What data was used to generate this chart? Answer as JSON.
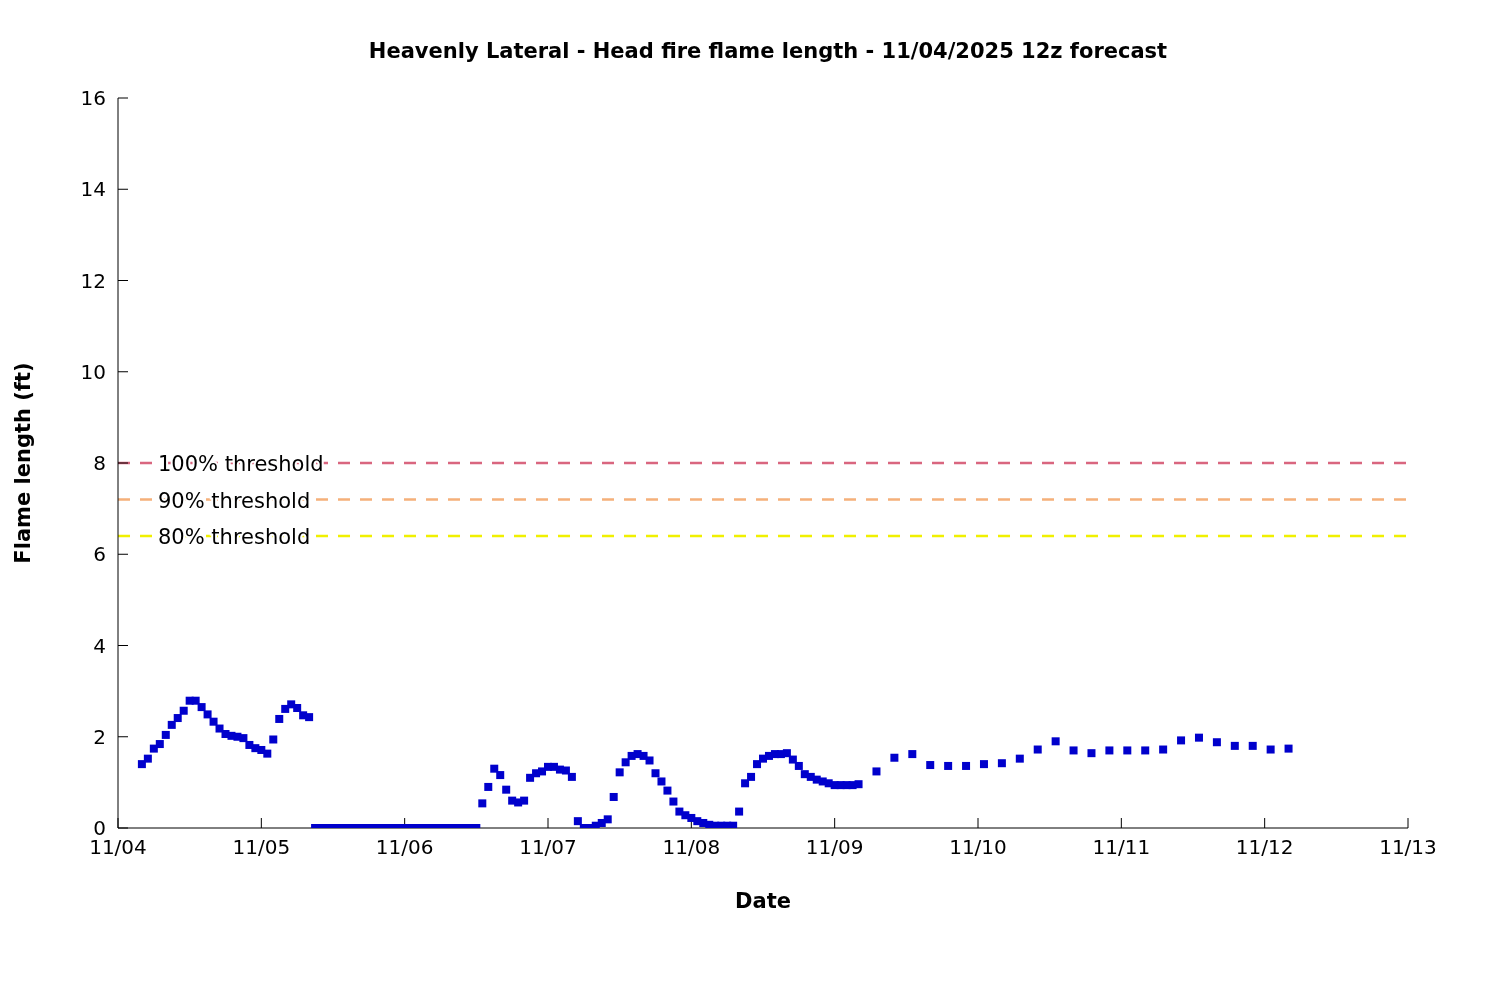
{
  "chart_data": {
    "type": "scatter",
    "title": "Heavenly Lateral - Head fire flame length - 11/04/2025 12z forecast",
    "xlabel": "Date",
    "ylabel": "Flame length (ft)",
    "xlim": [
      "2025-11-04",
      "2025-11-13"
    ],
    "xticks": [
      {
        "value": "2025-11-04",
        "label": "11/04"
      },
      {
        "value": "2025-11-05",
        "label": "11/05"
      },
      {
        "value": "2025-11-06",
        "label": "11/06"
      },
      {
        "value": "2025-11-07",
        "label": "11/07"
      },
      {
        "value": "2025-11-08",
        "label": "11/08"
      },
      {
        "value": "2025-11-09",
        "label": "11/09"
      },
      {
        "value": "2025-11-10",
        "label": "11/10"
      },
      {
        "value": "2025-11-11",
        "label": "11/11"
      },
      {
        "value": "2025-11-12",
        "label": "11/12"
      },
      {
        "value": "2025-11-13",
        "label": "11/13"
      }
    ],
    "ylim": [
      0,
      16
    ],
    "yticks": [
      0,
      2,
      4,
      6,
      8,
      10,
      12,
      14,
      16
    ],
    "grid": false,
    "legend": false,
    "marker": "square",
    "series": [
      {
        "color": "#0000cc",
        "x": [
          "2025-11-04T04:00",
          "2025-11-04T05:00",
          "2025-11-04T06:00",
          "2025-11-04T07:00",
          "2025-11-04T08:00",
          "2025-11-04T09:00",
          "2025-11-04T10:00",
          "2025-11-04T11:00",
          "2025-11-04T12:00",
          "2025-11-04T13:00",
          "2025-11-04T14:00",
          "2025-11-04T15:00",
          "2025-11-04T16:00",
          "2025-11-04T17:00",
          "2025-11-04T18:00",
          "2025-11-04T19:00",
          "2025-11-04T20:00",
          "2025-11-04T21:00",
          "2025-11-04T22:00",
          "2025-11-04T23:00",
          "2025-11-05T00:00",
          "2025-11-05T01:00",
          "2025-11-05T02:00",
          "2025-11-05T03:00",
          "2025-11-05T04:00",
          "2025-11-05T05:00",
          "2025-11-05T06:00",
          "2025-11-05T07:00",
          "2025-11-05T08:00",
          "2025-11-05T09:00",
          "2025-11-05T10:00",
          "2025-11-05T11:00",
          "2025-11-05T12:00",
          "2025-11-05T13:00",
          "2025-11-05T14:00",
          "2025-11-05T15:00",
          "2025-11-05T16:00",
          "2025-11-05T17:00",
          "2025-11-05T18:00",
          "2025-11-05T19:00",
          "2025-11-05T20:00",
          "2025-11-05T21:00",
          "2025-11-05T22:00",
          "2025-11-05T23:00",
          "2025-11-06T00:00",
          "2025-11-06T01:00",
          "2025-11-06T02:00",
          "2025-11-06T03:00",
          "2025-11-06T04:00",
          "2025-11-06T05:00",
          "2025-11-06T06:00",
          "2025-11-06T07:00",
          "2025-11-06T08:00",
          "2025-11-06T09:00",
          "2025-11-06T10:00",
          "2025-11-06T11:00",
          "2025-11-06T12:00",
          "2025-11-06T13:00",
          "2025-11-06T14:00",
          "2025-11-06T15:00",
          "2025-11-06T16:00",
          "2025-11-06T17:00",
          "2025-11-06T18:00",
          "2025-11-06T19:00",
          "2025-11-06T20:00",
          "2025-11-06T21:00",
          "2025-11-06T22:00",
          "2025-11-06T23:00",
          "2025-11-07T00:00",
          "2025-11-07T01:00",
          "2025-11-07T02:00",
          "2025-11-07T03:00",
          "2025-11-07T04:00",
          "2025-11-07T05:00",
          "2025-11-07T06:00",
          "2025-11-07T07:00",
          "2025-11-07T08:00",
          "2025-11-07T09:00",
          "2025-11-07T10:00",
          "2025-11-07T11:00",
          "2025-11-07T12:00",
          "2025-11-07T13:00",
          "2025-11-07T14:00",
          "2025-11-07T15:00",
          "2025-11-07T16:00",
          "2025-11-07T17:00",
          "2025-11-07T18:00",
          "2025-11-07T19:00",
          "2025-11-07T20:00",
          "2025-11-07T21:00",
          "2025-11-07T22:00",
          "2025-11-07T23:00",
          "2025-11-08T00:00",
          "2025-11-08T01:00",
          "2025-11-08T02:00",
          "2025-11-08T03:00",
          "2025-11-08T04:00",
          "2025-11-08T05:00",
          "2025-11-08T06:00",
          "2025-11-08T07:00",
          "2025-11-08T08:00",
          "2025-11-08T09:00",
          "2025-11-08T10:00",
          "2025-11-08T11:00",
          "2025-11-08T12:00",
          "2025-11-08T13:00",
          "2025-11-08T14:00",
          "2025-11-08T15:00",
          "2025-11-08T16:00",
          "2025-11-08T17:00",
          "2025-11-08T18:00",
          "2025-11-08T19:00",
          "2025-11-08T20:00",
          "2025-11-08T21:00",
          "2025-11-08T22:00",
          "2025-11-08T23:00",
          "2025-11-09T00:00",
          "2025-11-09T01:00",
          "2025-11-09T02:00",
          "2025-11-09T03:00",
          "2025-11-09T04:00",
          "2025-11-09T07:00",
          "2025-11-09T10:00",
          "2025-11-09T13:00",
          "2025-11-09T16:00",
          "2025-11-09T19:00",
          "2025-11-09T22:00",
          "2025-11-10T01:00",
          "2025-11-10T04:00",
          "2025-11-10T07:00",
          "2025-11-10T10:00",
          "2025-11-10T13:00",
          "2025-11-10T16:00",
          "2025-11-10T19:00",
          "2025-11-10T22:00",
          "2025-11-11T01:00",
          "2025-11-11T04:00",
          "2025-11-11T07:00",
          "2025-11-11T10:00",
          "2025-11-11T13:00",
          "2025-11-11T16:00",
          "2025-11-11T19:00",
          "2025-11-11T22:00",
          "2025-11-12T01:00",
          "2025-11-12T04:00"
        ],
        "values": [
          1.4,
          1.52,
          1.74,
          1.84,
          2.04,
          2.26,
          2.41,
          2.57,
          2.79,
          2.79,
          2.65,
          2.49,
          2.33,
          2.18,
          2.06,
          2.02,
          2.0,
          1.97,
          1.82,
          1.75,
          1.71,
          1.63,
          1.94,
          2.39,
          2.61,
          2.71,
          2.63,
          2.47,
          2.43,
          0,
          0,
          0,
          0,
          0,
          0,
          0,
          0,
          0,
          0,
          0,
          0,
          0,
          0,
          0,
          0,
          0,
          0,
          0,
          0,
          0,
          0,
          0,
          0,
          0,
          0,
          0,
          0,
          0.54,
          0.9,
          1.3,
          1.16,
          0.84,
          0.6,
          0.56,
          0.6,
          1.1,
          1.2,
          1.24,
          1.34,
          1.34,
          1.28,
          1.26,
          1.12,
          0.15,
          0,
          0,
          0.05,
          0.11,
          0.19,
          0.68,
          1.22,
          1.44,
          1.58,
          1.62,
          1.58,
          1.48,
          1.2,
          1.02,
          0.82,
          0.58,
          0.36,
          0.28,
          0.22,
          0.15,
          0.11,
          0.07,
          0.05,
          0.05,
          0.05,
          0.05,
          0.36,
          0.98,
          1.12,
          1.4,
          1.52,
          1.58,
          1.62,
          1.62,
          1.64,
          1.5,
          1.36,
          1.18,
          1.12,
          1.06,
          1.02,
          0.98,
          0.94,
          0.94,
          0.94,
          0.94,
          0.96,
          1.24,
          1.54,
          1.62,
          1.38,
          1.36,
          1.36,
          1.4,
          1.42,
          1.52,
          1.72,
          1.9,
          1.7,
          1.64,
          1.7,
          1.7,
          1.7,
          1.72,
          1.92,
          1.98,
          1.88,
          1.8,
          1.8,
          1.72,
          1.74
        ]
      }
    ],
    "ref_lines": [
      {
        "axis": "y",
        "value": 8,
        "label": "100% threshold",
        "color": "#d9667f",
        "line_style": "dashed"
      },
      {
        "axis": "y",
        "value": 7.2,
        "label": "90% threshold",
        "color": "#f5b07a",
        "line_style": "dashed"
      },
      {
        "axis": "y",
        "value": 6.4,
        "label": "80% threshold",
        "color": "#f0f000",
        "line_style": "dashed"
      }
    ]
  }
}
